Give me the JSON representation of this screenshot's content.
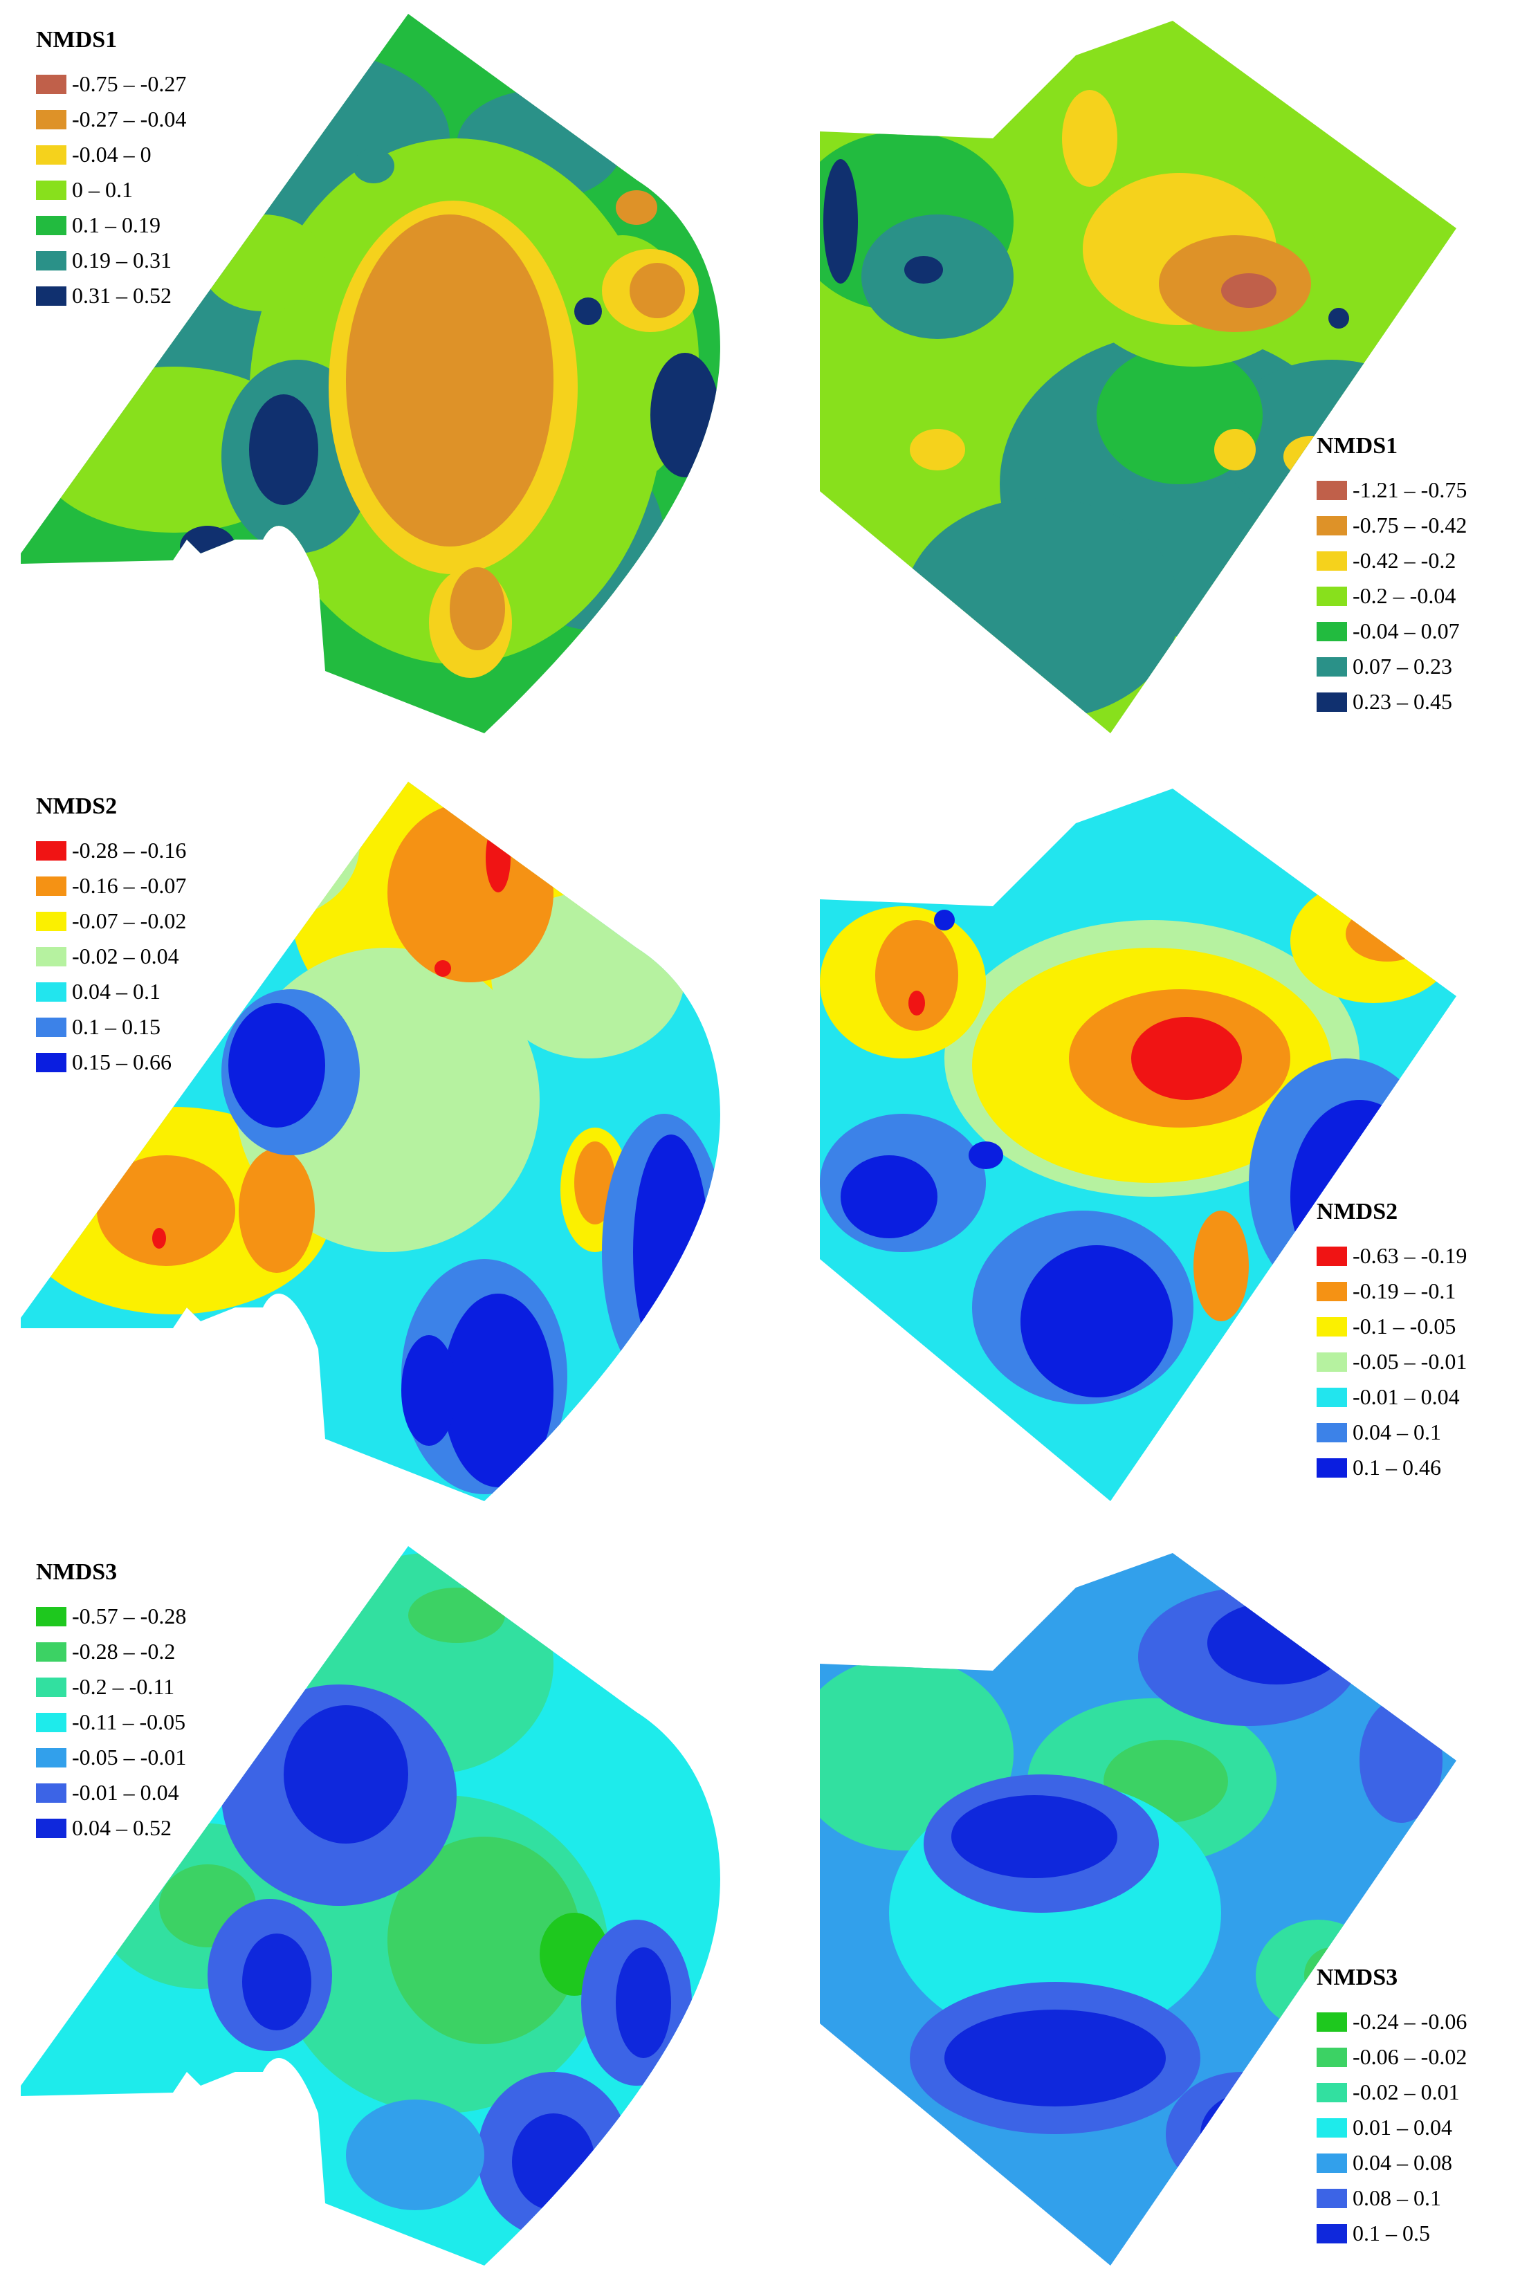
{
  "panels": [
    {
      "id": "p1",
      "title": "NMDS1",
      "classes": [
        {
          "label": "-0.75 – -0.27",
          "color": "#c0604a"
        },
        {
          "label": "-0.27 – -0.04",
          "color": "#de9228"
        },
        {
          "label": "-0.04 – 0",
          "color": "#f5d21c"
        },
        {
          "label": "0 – 0.1",
          "color": "#88e01c"
        },
        {
          "label": "0.1 – 0.19",
          "color": "#22bb3f"
        },
        {
          "label": "0.19 – 0.31",
          "color": "#2a9188"
        },
        {
          "label": "0.31 – 0.52",
          "color": "#10306f"
        }
      ]
    },
    {
      "id": "p2",
      "title": "NMDS1",
      "classes": [
        {
          "label": "-1.21 – -0.75",
          "color": "#c0604a"
        },
        {
          "label": "-0.75 – -0.42",
          "color": "#de9228"
        },
        {
          "label": "-0.42 – -0.2",
          "color": "#f5d21c"
        },
        {
          "label": "-0.2 – -0.04",
          "color": "#88e01c"
        },
        {
          "label": "-0.04 – 0.07",
          "color": "#22bb3f"
        },
        {
          "label": "0.07 – 0.23",
          "color": "#2a9188"
        },
        {
          "label": "0.23 – 0.45",
          "color": "#10306f"
        }
      ]
    },
    {
      "id": "p3",
      "title": "NMDS2",
      "classes": [
        {
          "label": "-0.28 – -0.16",
          "color": "#f01414"
        },
        {
          "label": "-0.16 – -0.07",
          "color": "#f59214"
        },
        {
          "label": "-0.07 – -0.02",
          "color": "#fbf000"
        },
        {
          "label": "-0.02 – 0.04",
          "color": "#b6f2a0"
        },
        {
          "label": "0.04 – 0.1",
          "color": "#22e5ee"
        },
        {
          "label": "0.1 – 0.15",
          "color": "#3c82e8"
        },
        {
          "label": "0.15 – 0.66",
          "color": "#0a1ee0"
        }
      ]
    },
    {
      "id": "p4",
      "title": "NMDS2",
      "classes": [
        {
          "label": "-0.63 – -0.19",
          "color": "#f01414"
        },
        {
          "label": "-0.19 – -0.1",
          "color": "#f59214"
        },
        {
          "label": "-0.1 – -0.05",
          "color": "#fbf000"
        },
        {
          "label": "-0.05 – -0.01",
          "color": "#b6f2a0"
        },
        {
          "label": "-0.01 – 0.04",
          "color": "#22e5ee"
        },
        {
          "label": "0.04 – 0.1",
          "color": "#3c82e8"
        },
        {
          "label": "0.1 – 0.46",
          "color": "#0a1ee0"
        }
      ]
    },
    {
      "id": "p5",
      "title": "NMDS3",
      "classes": [
        {
          "label": "-0.57 – -0.28",
          "color": "#1ec81e"
        },
        {
          "label": "-0.28 – -0.2",
          "color": "#3cd264"
        },
        {
          "label": "-0.2 – -0.11",
          "color": "#32e0a0"
        },
        {
          "label": "-0.11 – -0.05",
          "color": "#1eebeb"
        },
        {
          "label": "-0.05 – -0.01",
          "color": "#32a0eb"
        },
        {
          "label": "-0.01 – 0.04",
          "color": "#3c64e6"
        },
        {
          "label": "0.04 – 0.52",
          "color": "#0f28dc"
        }
      ]
    },
    {
      "id": "p6",
      "title": "NMDS3",
      "classes": [
        {
          "label": "-0.24 – -0.06",
          "color": "#1ec81e"
        },
        {
          "label": "-0.06 – -0.02",
          "color": "#3cd264"
        },
        {
          "label": "-0.02 – 0.01",
          "color": "#32e0a0"
        },
        {
          "label": "0.01 – 0.04",
          "color": "#1eebeb"
        },
        {
          "label": "0.04 – 0.08",
          "color": "#32a0eb"
        },
        {
          "label": "0.08 – 0.1",
          "color": "#3c64e6"
        },
        {
          "label": "0.1 – 0.5",
          "color": "#0f28dc"
        }
      ]
    }
  ]
}
